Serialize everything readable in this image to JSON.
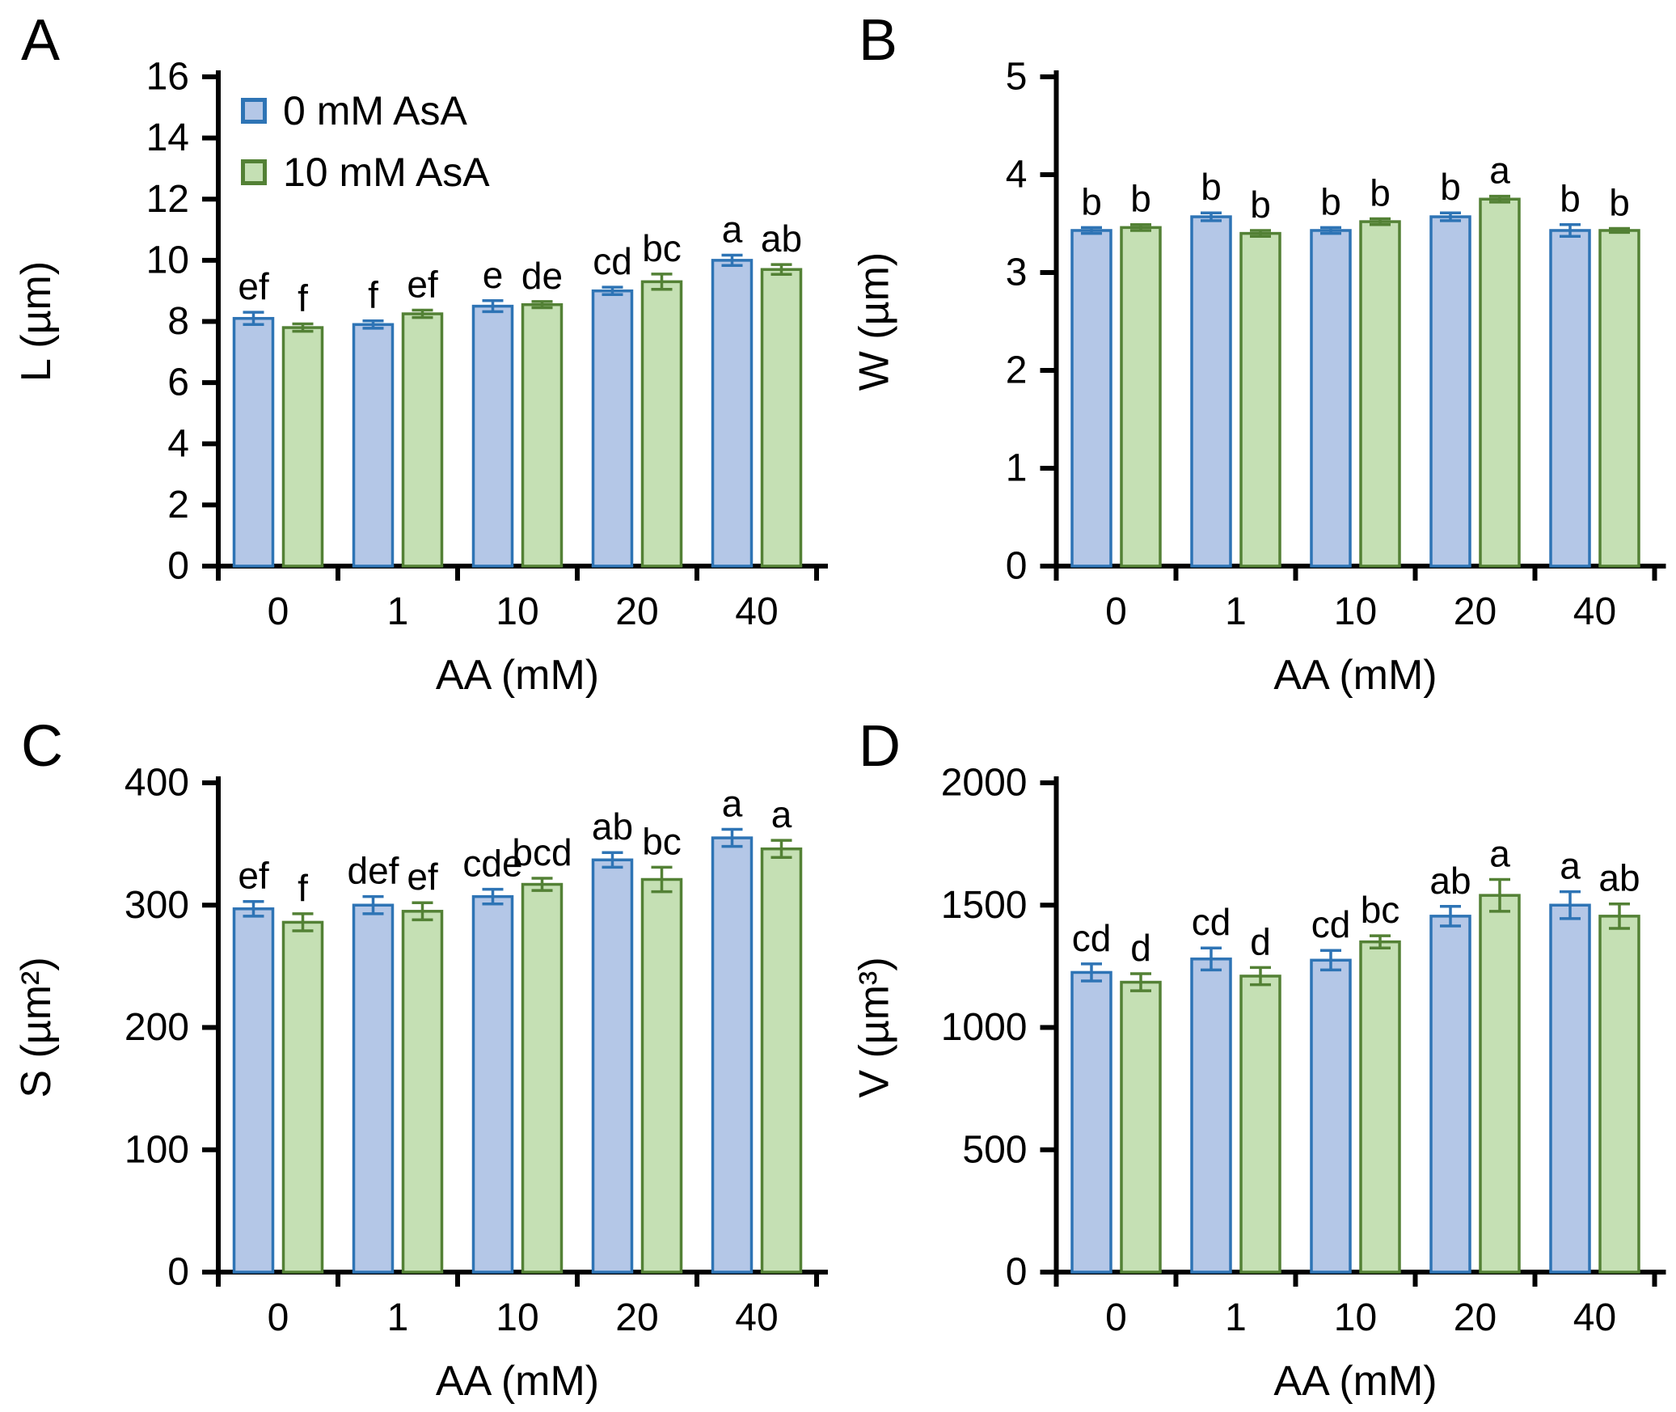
{
  "figure": {
    "background": "#FFFFFF",
    "axis_color": "#000000",
    "text_color": "#000000"
  },
  "legend": {
    "position": "top-left-inside-panel-A",
    "items": [
      {
        "label": "0 mM AsA",
        "fill": "#B4C7E7",
        "stroke": "#2E74B5"
      },
      {
        "label": "10 mM AsA",
        "fill": "#C5E0B4",
        "stroke": "#538135"
      }
    ]
  },
  "chart_data": [
    {
      "panel_label": "A",
      "type": "bar",
      "grid": false,
      "categories": [
        "0",
        "1",
        "10",
        "20",
        "40"
      ],
      "xlabel": "AA (mM)",
      "ylabel": "L (µm)",
      "ylim": [
        0,
        16
      ],
      "ytick_step": 2,
      "series": [
        {
          "name": "0 mM AsA",
          "values": [
            8.1,
            7.9,
            8.5,
            9.0,
            10.0
          ],
          "errors": [
            0.2,
            0.12,
            0.18,
            0.12,
            0.17
          ],
          "letters": [
            "ef",
            "f",
            "e",
            "cd",
            "a"
          ]
        },
        {
          "name": "10 mM AsA",
          "values": [
            7.8,
            8.25,
            8.55,
            9.3,
            9.7
          ],
          "errors": [
            0.12,
            0.12,
            0.1,
            0.25,
            0.16
          ],
          "letters": [
            "f",
            "ef",
            "de",
            "bc",
            "ab"
          ]
        }
      ]
    },
    {
      "panel_label": "B",
      "type": "bar",
      "grid": false,
      "categories": [
        "0",
        "1",
        "10",
        "20",
        "40"
      ],
      "xlabel": "AA (mM)",
      "ylabel": "W (µm)",
      "ylim": [
        0,
        5
      ],
      "ytick_step": 1,
      "series": [
        {
          "name": "0 mM AsA",
          "values": [
            3.43,
            3.57,
            3.43,
            3.57,
            3.43
          ],
          "errors": [
            0.03,
            0.04,
            0.03,
            0.04,
            0.06
          ],
          "letters": [
            "b",
            "b",
            "b",
            "b",
            "b"
          ]
        },
        {
          "name": "10 mM AsA",
          "values": [
            3.46,
            3.4,
            3.52,
            3.75,
            3.43
          ],
          "errors": [
            0.03,
            0.03,
            0.03,
            0.03,
            0.02
          ],
          "letters": [
            "b",
            "b",
            "b",
            "a",
            "b"
          ]
        }
      ]
    },
    {
      "panel_label": "C",
      "type": "bar",
      "grid": false,
      "categories": [
        "0",
        "1",
        "10",
        "20",
        "40"
      ],
      "xlabel": "AA (mM)",
      "ylabel": "S (µm²)",
      "ylim": [
        0,
        400
      ],
      "ytick_step": 100,
      "series": [
        {
          "name": "0 mM AsA",
          "values": [
            297,
            300,
            307,
            337,
            355
          ],
          "errors": [
            6,
            7,
            6,
            6,
            7
          ],
          "letters": [
            "ef",
            "def",
            "cde",
            "ab",
            "a"
          ]
        },
        {
          "name": "10 mM AsA",
          "values": [
            286,
            295,
            317,
            321,
            346
          ],
          "errors": [
            7,
            7,
            5,
            10,
            7
          ],
          "letters": [
            "f",
            "ef",
            "bcd",
            "bc",
            "a"
          ]
        }
      ]
    },
    {
      "panel_label": "D",
      "type": "bar",
      "grid": false,
      "categories": [
        "0",
        "1",
        "10",
        "20",
        "40"
      ],
      "xlabel": "AA (mM)",
      "ylabel": "V (µm³)",
      "ylim": [
        0,
        2000
      ],
      "ytick_step": 500,
      "series": [
        {
          "name": "0 mM AsA",
          "values": [
            1225,
            1280,
            1275,
            1455,
            1500
          ],
          "errors": [
            35,
            45,
            40,
            40,
            55
          ],
          "letters": [
            "cd",
            "cd",
            "cd",
            "ab",
            "a"
          ]
        },
        {
          "name": "10 mM AsA",
          "values": [
            1185,
            1210,
            1350,
            1540,
            1455
          ],
          "errors": [
            35,
            35,
            25,
            65,
            50
          ],
          "letters": [
            "d",
            "d",
            "bc",
            "a",
            "ab"
          ]
        }
      ]
    }
  ]
}
